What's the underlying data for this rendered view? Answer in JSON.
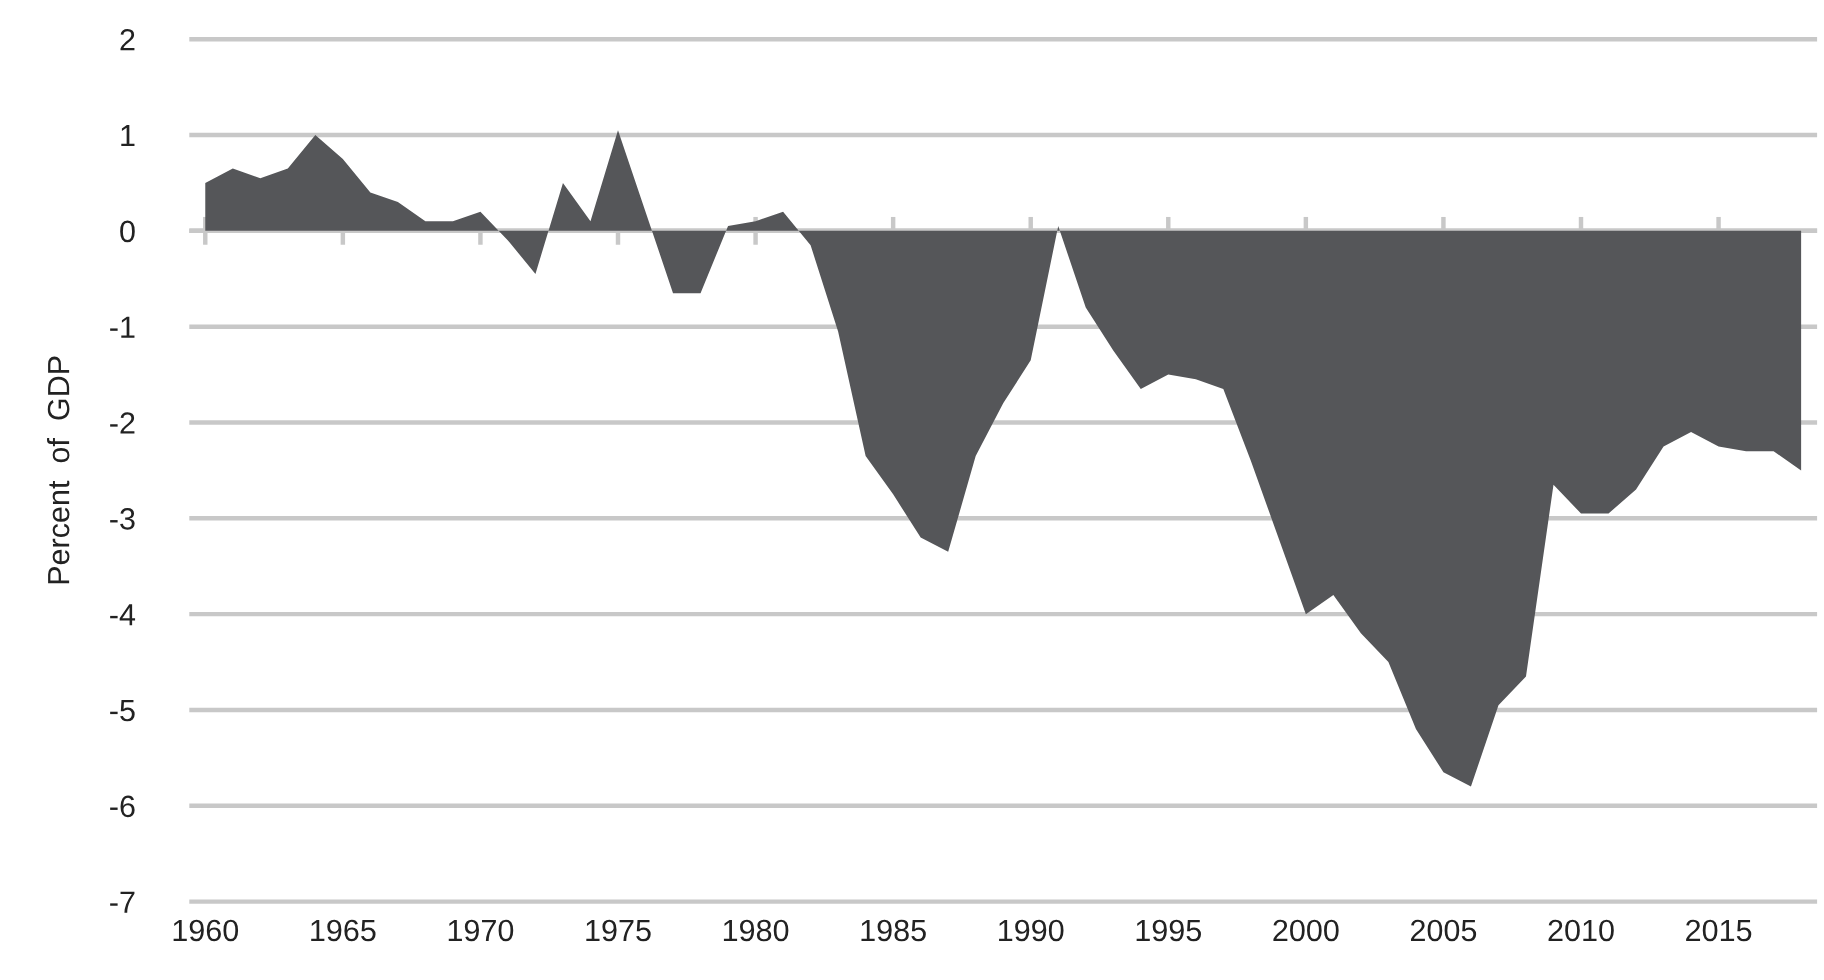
{
  "chart_data": {
    "type": "area",
    "ylabel": "Percent  of  GDP",
    "x": [
      1960,
      1961,
      1962,
      1963,
      1964,
      1965,
      1966,
      1967,
      1968,
      1969,
      1970,
      1971,
      1972,
      1973,
      1974,
      1975,
      1976,
      1977,
      1978,
      1979,
      1980,
      1981,
      1982,
      1983,
      1984,
      1985,
      1986,
      1987,
      1988,
      1989,
      1990,
      1991,
      1992,
      1993,
      1994,
      1995,
      1996,
      1997,
      1998,
      1999,
      2000,
      2001,
      2002,
      2003,
      2004,
      2005,
      2006,
      2007,
      2008,
      2009,
      2010,
      2011,
      2012,
      2013,
      2014,
      2015,
      2016,
      2017,
      2018
    ],
    "series": [
      {
        "color": "#555659",
        "values": [
          0.5,
          0.65,
          0.55,
          0.65,
          1.0,
          0.75,
          0.4,
          0.3,
          0.1,
          0.1,
          0.2,
          -0.1,
          -0.45,
          0.5,
          0.1,
          1.05,
          0.2,
          -0.65,
          -0.65,
          0.05,
          0.1,
          0.2,
          -0.15,
          -1.05,
          -2.35,
          -2.75,
          -3.2,
          -3.35,
          -2.35,
          -1.8,
          -1.35,
          0.05,
          -0.8,
          -1.25,
          -1.65,
          -1.5,
          -1.55,
          -1.65,
          -2.4,
          -3.2,
          -4.0,
          -3.8,
          -4.2,
          -4.5,
          -5.2,
          -5.65,
          -5.8,
          -4.95,
          -4.65,
          -2.65,
          -2.95,
          -2.95,
          -2.7,
          -2.25,
          -2.1,
          -2.25,
          -2.3,
          -2.3,
          -2.5
        ]
      }
    ],
    "xlim": [
      1959.5,
      2018.5
    ],
    "xticks": [
      1960,
      1965,
      1970,
      1975,
      1980,
      1985,
      1990,
      1995,
      2000,
      2005,
      2010,
      2015
    ],
    "ylim": [
      -7,
      2
    ],
    "yticks": [
      -7,
      -6,
      -5,
      -4,
      -3,
      -2,
      -1,
      0,
      1,
      2
    ],
    "grid": "y",
    "legend": false
  }
}
